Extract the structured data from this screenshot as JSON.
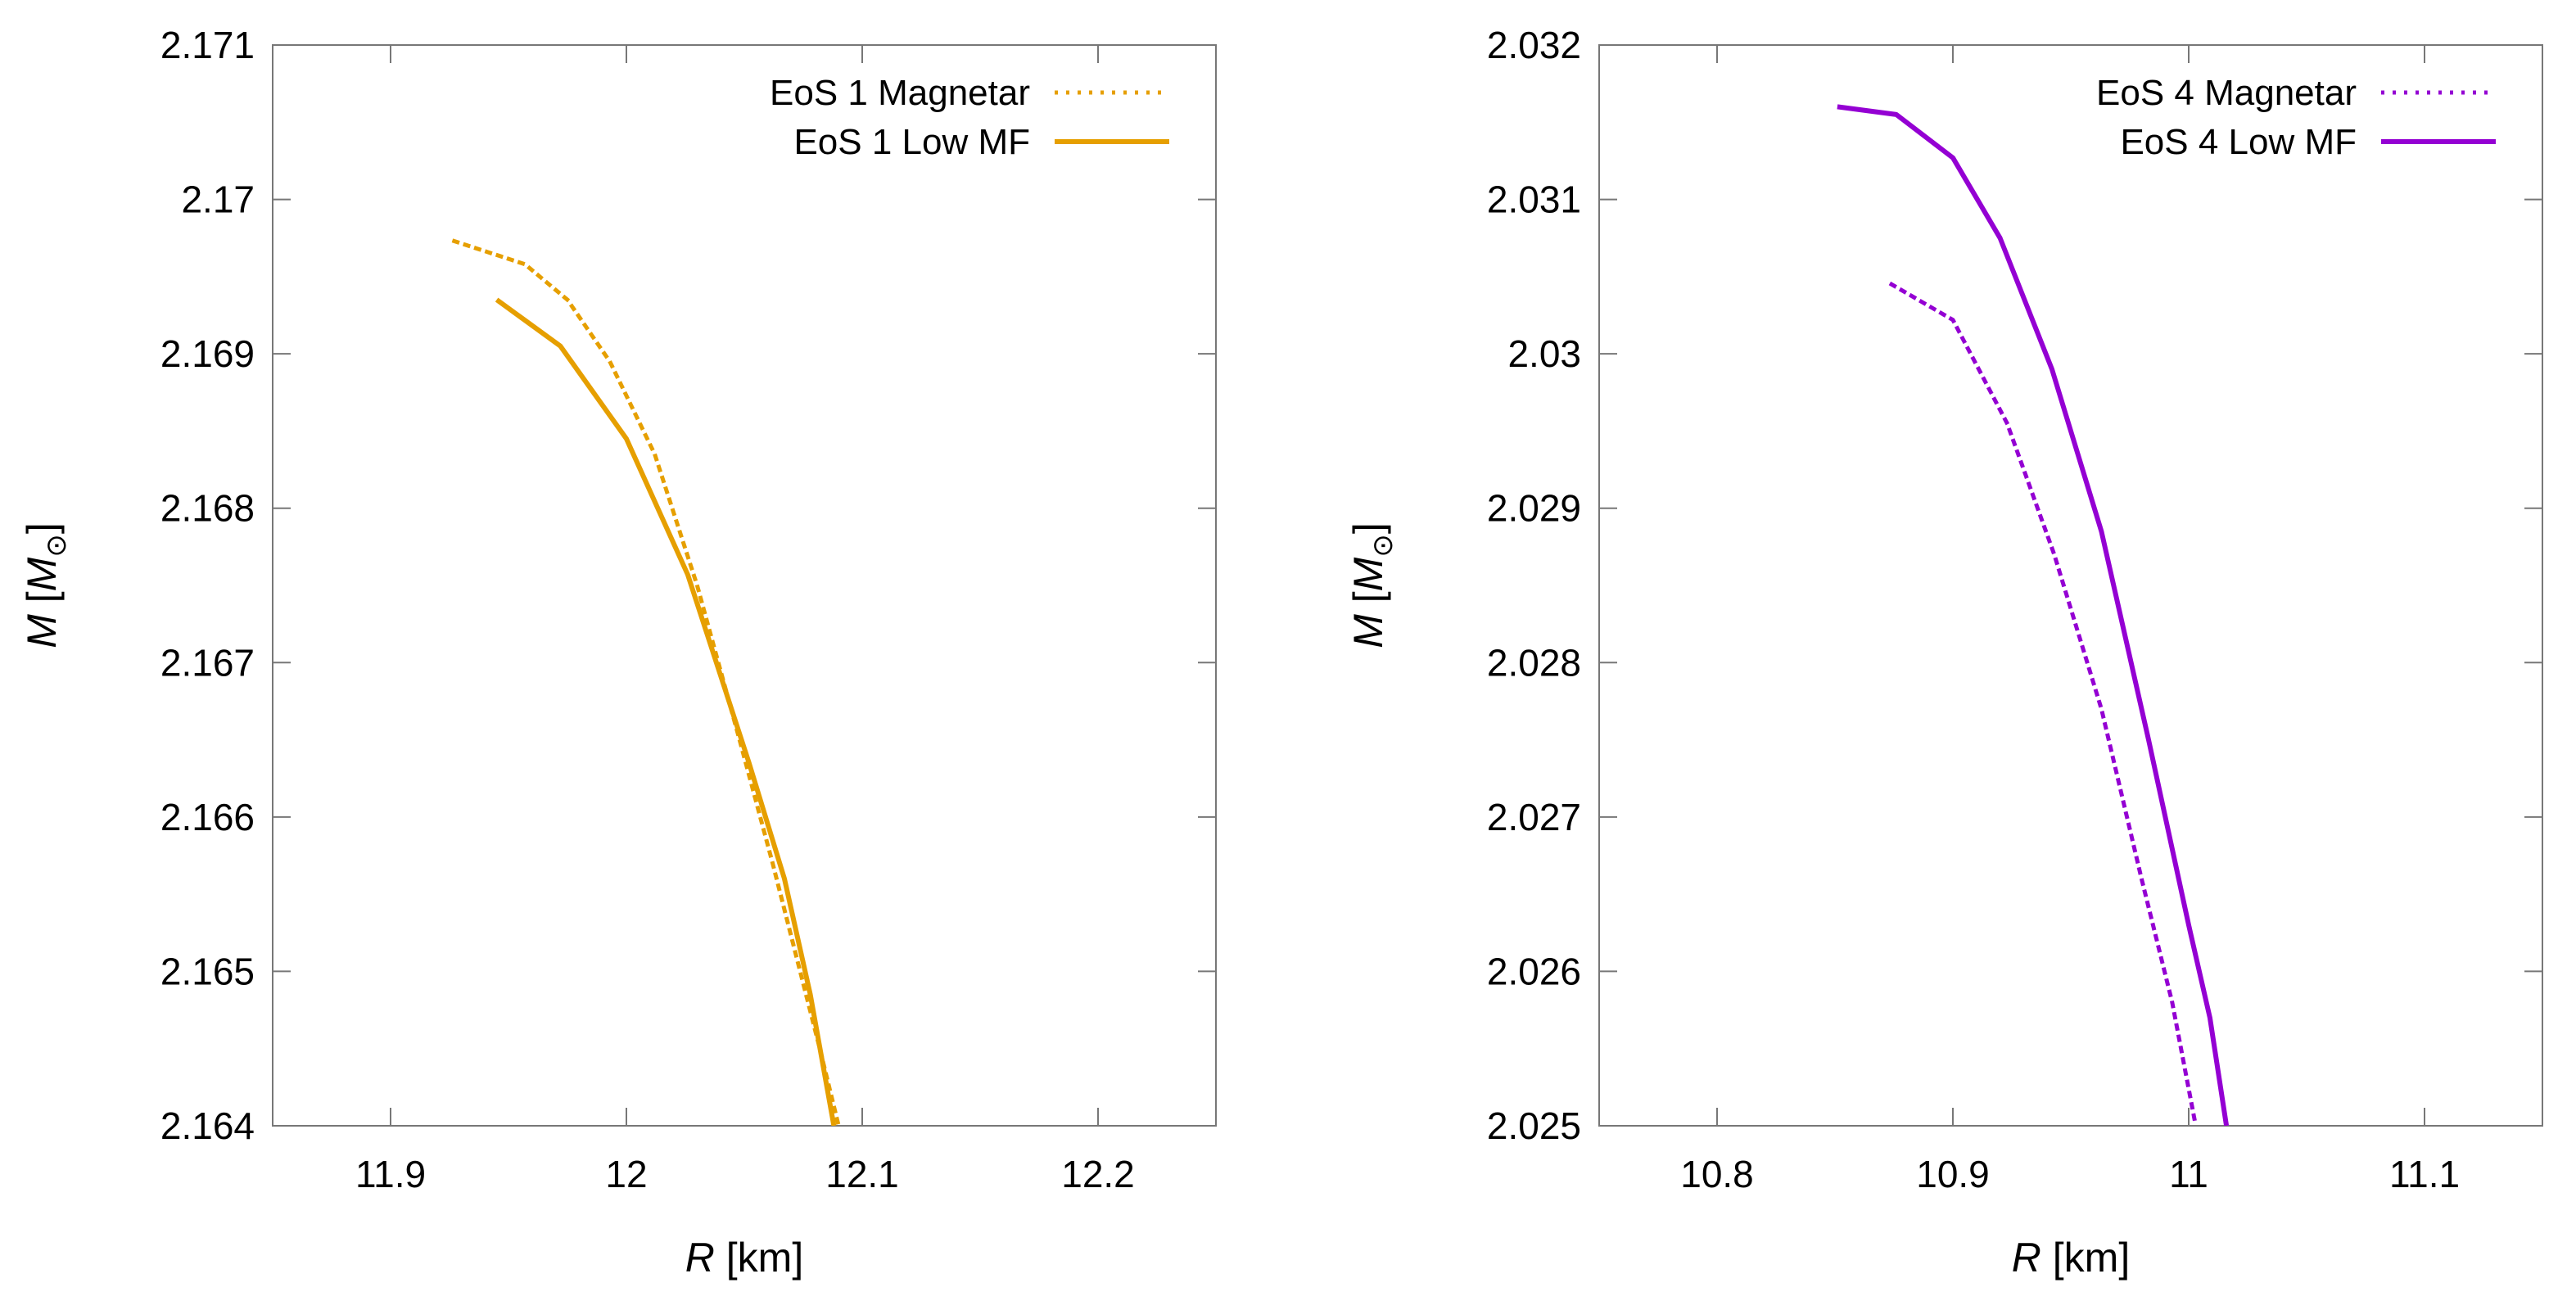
{
  "chart_data": [
    {
      "type": "line",
      "xlabel": {
        "var": "R",
        "unit": " [km]"
      },
      "ylabel": {
        "var": "M",
        "open": " [",
        "sub_var": "M",
        "sub": "⊙",
        "close": "]"
      },
      "xlim": [
        11.85,
        12.25
      ],
      "ylim": [
        2.164,
        2.171
      ],
      "xticks": [
        11.9,
        12.0,
        12.1,
        12.2
      ],
      "xtick_labels": [
        "11.9",
        "12",
        "12.1",
        "12.2"
      ],
      "yticks": [
        2.164,
        2.165,
        2.166,
        2.167,
        2.168,
        2.169,
        2.17,
        2.171
      ],
      "ytick_labels": [
        "2.164",
        "2.165",
        "2.166",
        "2.167",
        "2.168",
        "2.169",
        "2.17",
        "2.171"
      ],
      "grid": false,
      "legend_position": "top-right",
      "series": [
        {
          "name": "EoS 1 Magnetar",
          "style": "dotted",
          "color": "#E69F00",
          "x": [
            11.927,
            11.957,
            11.975,
            11.993,
            12.012,
            12.03,
            12.048,
            12.062,
            12.072,
            12.082,
            12.09
          ],
          "y": [
            2.16973,
            2.16958,
            2.16935,
            2.16895,
            2.16835,
            2.1675,
            2.1665,
            2.1657,
            2.1651,
            2.1645,
            2.164
          ]
        },
        {
          "name": "EoS 1 Low MF",
          "style": "solid",
          "color": "#E69F00",
          "x": [
            11.945,
            11.972,
            12.0,
            12.026,
            12.052,
            12.067,
            12.078,
            12.088
          ],
          "y": [
            2.16935,
            2.16905,
            2.16845,
            2.16757,
            2.16635,
            2.1656,
            2.16485,
            2.164
          ]
        }
      ]
    },
    {
      "type": "line",
      "xlabel": {
        "var": "R",
        "unit": " [km]"
      },
      "ylabel": {
        "var": "M",
        "open": " [",
        "sub_var": "M",
        "sub": "⊙",
        "close": "]"
      },
      "xlim": [
        10.75,
        11.15
      ],
      "ylim": [
        2.025,
        2.032
      ],
      "xticks": [
        10.8,
        10.9,
        11.0,
        11.1
      ],
      "xtick_labels": [
        "10.8",
        "10.9",
        "11",
        "11.1"
      ],
      "yticks": [
        2.025,
        2.026,
        2.027,
        2.028,
        2.029,
        2.03,
        2.031,
        2.032
      ],
      "ytick_labels": [
        "2.025",
        "2.026",
        "2.027",
        "2.028",
        "2.029",
        "2.03",
        "2.031",
        "2.032"
      ],
      "grid": false,
      "legend_position": "top-right",
      "series": [
        {
          "name": "EoS 4 Magnetar",
          "style": "dotted",
          "color": "#9400D3",
          "x": [
            10.874,
            10.9,
            10.923,
            10.943,
            10.963,
            10.98,
            10.993,
            11.003
          ],
          "y": [
            2.03045,
            2.03022,
            2.02955,
            2.0287,
            2.0277,
            2.0266,
            2.0258,
            2.025
          ]
        },
        {
          "name": "EoS 4 Low MF",
          "style": "solid",
          "color": "#9400D3",
          "x": [
            10.851,
            10.876,
            10.9,
            10.92,
            10.942,
            10.963,
            10.983,
            11.0,
            11.009,
            11.016
          ],
          "y": [
            2.0316,
            2.03155,
            2.03127,
            2.03075,
            2.0299,
            2.02885,
            2.0275,
            2.0263,
            2.0257,
            2.025
          ]
        }
      ]
    }
  ]
}
